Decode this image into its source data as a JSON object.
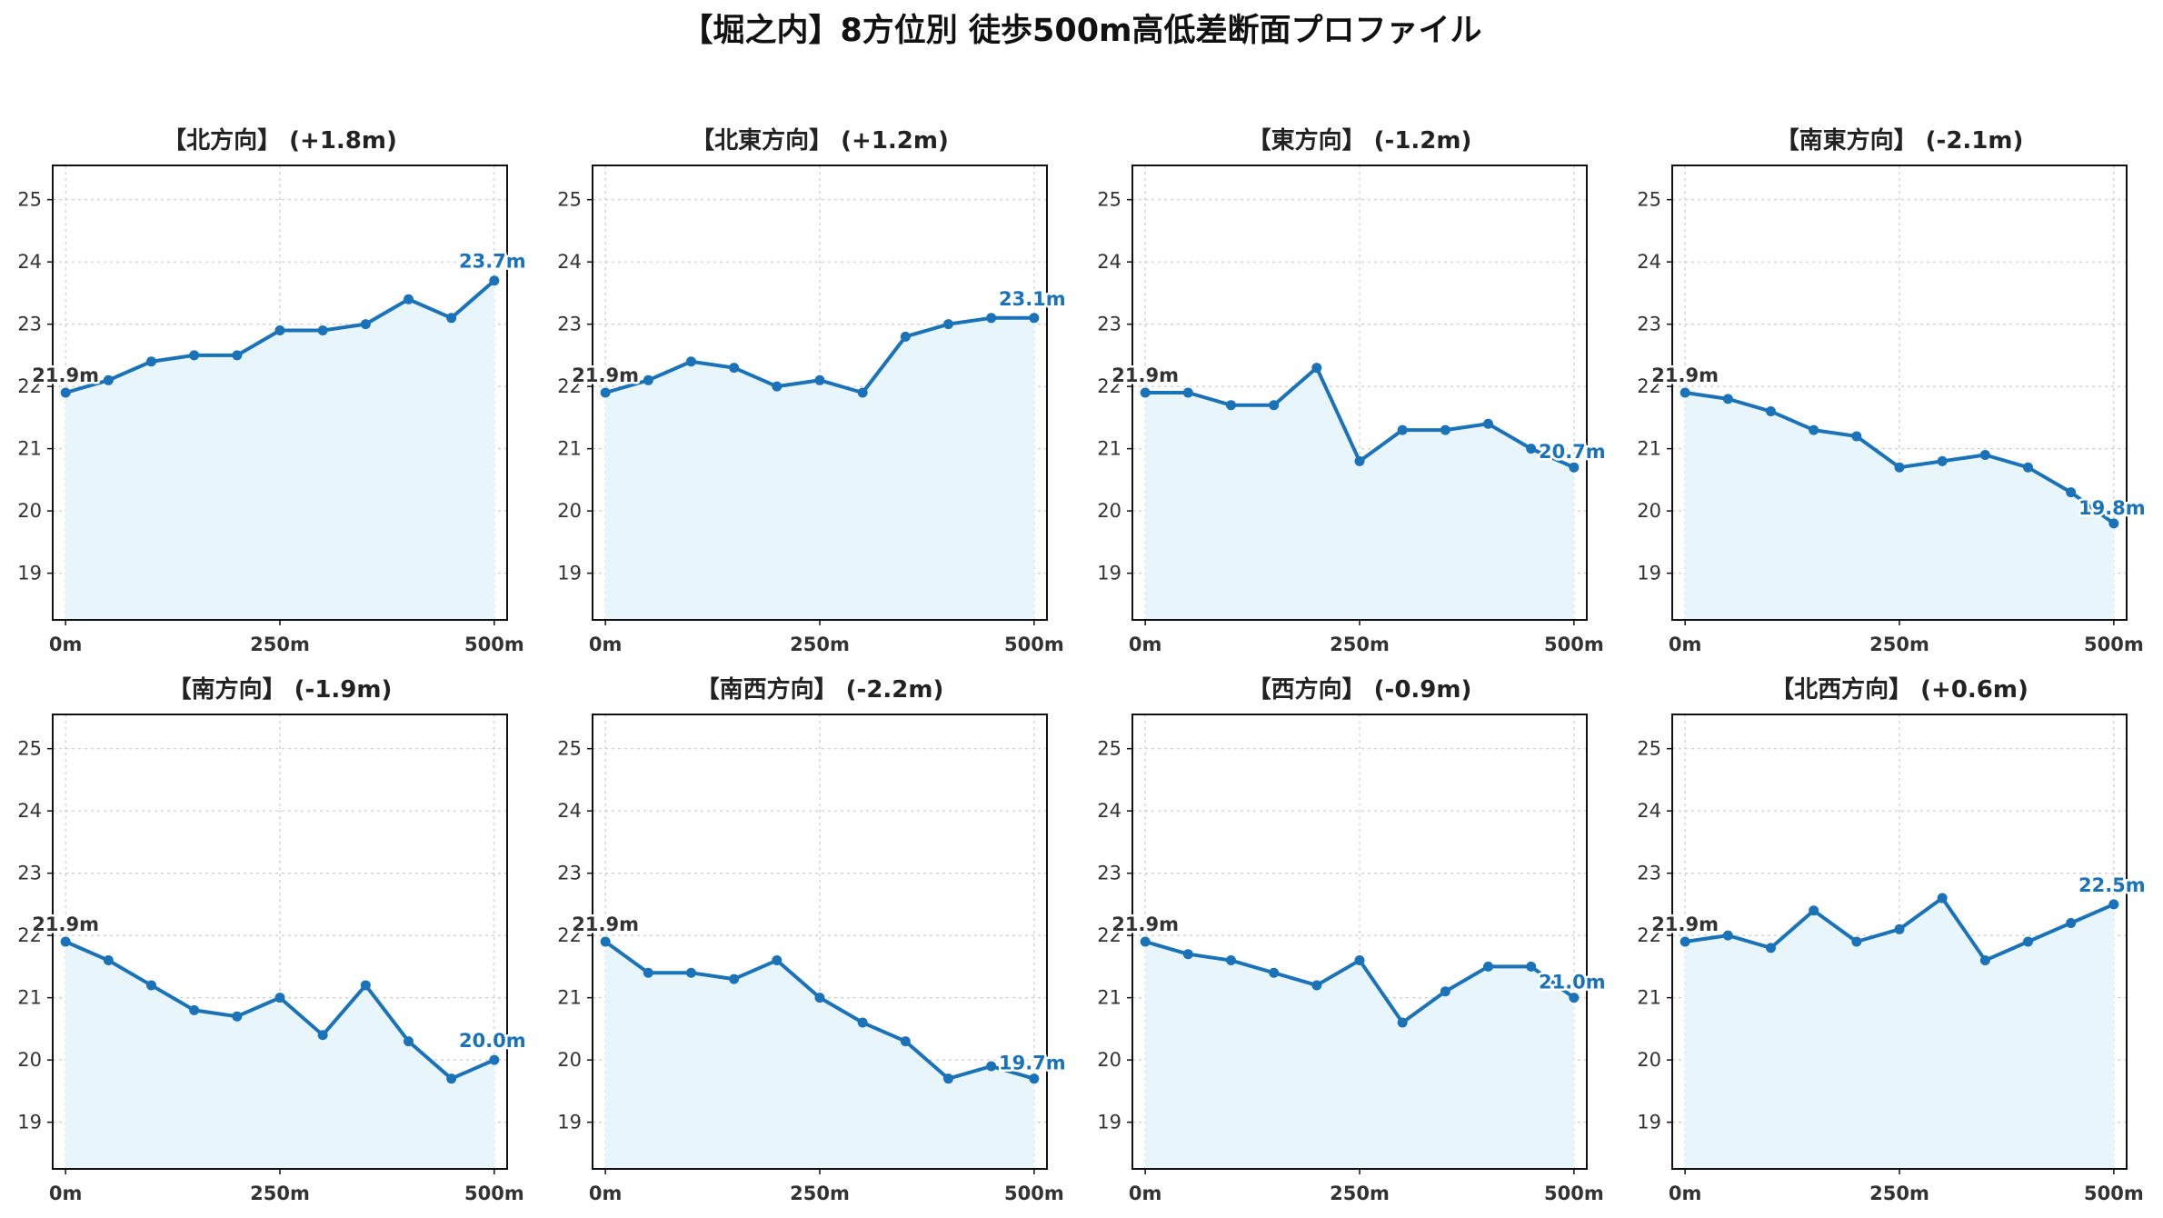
{
  "title": "【堀之内】8方位別 徒歩500m高低差断面プロファイル",
  "colors": {
    "line": "#1a73b8",
    "fill": "#e8f6fc",
    "grid": "#cccccc",
    "frame": "#111111",
    "start_label": "#333333",
    "end_label": "#1a73b8",
    "label_halo": "#ffffff"
  },
  "chart_data": [
    {
      "type": "area",
      "title": "【北方向】 (+1.8m)",
      "x": [
        0,
        50,
        100,
        150,
        200,
        250,
        300,
        350,
        400,
        450,
        500
      ],
      "y": [
        21.9,
        22.1,
        22.4,
        22.5,
        22.5,
        22.9,
        22.9,
        23.0,
        23.4,
        23.1,
        23.7
      ],
      "start_label": "21.9m",
      "end_label": "23.7m",
      "xticks": [
        "0m",
        "250m",
        "500m"
      ],
      "yticks": [
        19,
        20,
        21,
        22,
        23,
        24,
        25
      ],
      "xlim": [
        -15,
        515
      ],
      "ylim": [
        18.25,
        25.55
      ],
      "grid": true
    },
    {
      "type": "area",
      "title": "【北東方向】 (+1.2m)",
      "x": [
        0,
        50,
        100,
        150,
        200,
        250,
        300,
        350,
        400,
        450,
        500
      ],
      "y": [
        21.9,
        22.1,
        22.4,
        22.3,
        22.0,
        22.1,
        21.9,
        22.8,
        23.0,
        23.1,
        23.1
      ],
      "start_label": "21.9m",
      "end_label": "23.1m",
      "xticks": [
        "0m",
        "250m",
        "500m"
      ],
      "yticks": [
        19,
        20,
        21,
        22,
        23,
        24,
        25
      ],
      "xlim": [
        -15,
        515
      ],
      "ylim": [
        18.25,
        25.55
      ],
      "grid": true
    },
    {
      "type": "area",
      "title": "【東方向】 (-1.2m)",
      "x": [
        0,
        50,
        100,
        150,
        200,
        250,
        300,
        350,
        400,
        450,
        500
      ],
      "y": [
        21.9,
        21.9,
        21.7,
        21.7,
        22.3,
        20.8,
        21.3,
        21.3,
        21.4,
        21.0,
        20.7
      ],
      "start_label": "21.9m",
      "end_label": "20.7m",
      "xticks": [
        "0m",
        "250m",
        "500m"
      ],
      "yticks": [
        19,
        20,
        21,
        22,
        23,
        24,
        25
      ],
      "xlim": [
        -15,
        515
      ],
      "ylim": [
        18.25,
        25.55
      ],
      "grid": true
    },
    {
      "type": "area",
      "title": "【南東方向】 (-2.1m)",
      "x": [
        0,
        50,
        100,
        150,
        200,
        250,
        300,
        350,
        400,
        450,
        500
      ],
      "y": [
        21.9,
        21.8,
        21.6,
        21.3,
        21.2,
        20.7,
        20.8,
        20.9,
        20.7,
        20.3,
        19.8
      ],
      "start_label": "21.9m",
      "end_label": "19.8m",
      "xticks": [
        "0m",
        "250m",
        "500m"
      ],
      "yticks": [
        19,
        20,
        21,
        22,
        23,
        24,
        25
      ],
      "xlim": [
        -15,
        515
      ],
      "ylim": [
        18.25,
        25.55
      ],
      "grid": true
    },
    {
      "type": "area",
      "title": "【南方向】 (-1.9m)",
      "x": [
        0,
        50,
        100,
        150,
        200,
        250,
        300,
        350,
        400,
        450,
        500
      ],
      "y": [
        21.9,
        21.6,
        21.2,
        20.8,
        20.7,
        21.0,
        20.4,
        21.2,
        20.3,
        19.7,
        20.0
      ],
      "start_label": "21.9m",
      "end_label": "20.0m",
      "xticks": [
        "0m",
        "250m",
        "500m"
      ],
      "yticks": [
        19,
        20,
        21,
        22,
        23,
        24,
        25
      ],
      "xlim": [
        -15,
        515
      ],
      "ylim": [
        18.25,
        25.55
      ],
      "grid": true
    },
    {
      "type": "area",
      "title": "【南西方向】 (-2.2m)",
      "x": [
        0,
        50,
        100,
        150,
        200,
        250,
        300,
        350,
        400,
        450,
        500
      ],
      "y": [
        21.9,
        21.4,
        21.4,
        21.3,
        21.6,
        21.0,
        20.6,
        20.3,
        19.7,
        19.9,
        19.7
      ],
      "start_label": "21.9m",
      "end_label": "19.7m",
      "xticks": [
        "0m",
        "250m",
        "500m"
      ],
      "yticks": [
        19,
        20,
        21,
        22,
        23,
        24,
        25
      ],
      "xlim": [
        -15,
        515
      ],
      "ylim": [
        18.25,
        25.55
      ],
      "grid": true
    },
    {
      "type": "area",
      "title": "【西方向】 (-0.9m)",
      "x": [
        0,
        50,
        100,
        150,
        200,
        250,
        300,
        350,
        400,
        450,
        500
      ],
      "y": [
        21.9,
        21.7,
        21.6,
        21.4,
        21.2,
        21.6,
        20.6,
        21.1,
        21.5,
        21.5,
        21.0
      ],
      "start_label": "21.9m",
      "end_label": "21.0m",
      "xticks": [
        "0m",
        "250m",
        "500m"
      ],
      "yticks": [
        19,
        20,
        21,
        22,
        23,
        24,
        25
      ],
      "xlim": [
        -15,
        515
      ],
      "ylim": [
        18.25,
        25.55
      ],
      "grid": true
    },
    {
      "type": "area",
      "title": "【北西方向】 (+0.6m)",
      "x": [
        0,
        50,
        100,
        150,
        200,
        250,
        300,
        350,
        400,
        450,
        500
      ],
      "y": [
        21.9,
        22.0,
        21.8,
        22.4,
        21.9,
        22.1,
        22.6,
        21.6,
        21.9,
        22.2,
        22.5
      ],
      "start_label": "21.9m",
      "end_label": "22.5m",
      "xticks": [
        "0m",
        "250m",
        "500m"
      ],
      "yticks": [
        19,
        20,
        21,
        22,
        23,
        24,
        25
      ],
      "xlim": [
        -15,
        515
      ],
      "ylim": [
        18.25,
        25.55
      ],
      "grid": true
    }
  ]
}
